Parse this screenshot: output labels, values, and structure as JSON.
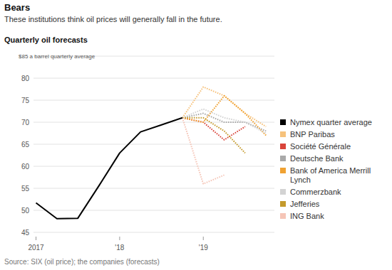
{
  "chart_data": {
    "type": "line",
    "title": "Bears",
    "subtitle": "These institutions think oil prices will generally fall in the future.",
    "y_label": "Quarterly oil forecasts",
    "source": "Source: SIX (oil price); the companies (forecasts)",
    "x": [
      2017.0,
      2017.25,
      2017.5,
      2017.75,
      2018.0,
      2018.25,
      2018.5,
      2018.75,
      2019.0,
      2019.25,
      2019.5,
      2019.75
    ],
    "xlim": [
      2016.97,
      2019.85
    ],
    "xticks": [
      {
        "value": 2017,
        "label": "2017"
      },
      {
        "value": 2018,
        "label": "'18"
      },
      {
        "value": 2019,
        "label": "'19"
      }
    ],
    "ylim": [
      45,
      85
    ],
    "yticks": [
      45,
      50,
      55,
      60,
      65,
      70,
      75,
      80,
      {
        "value": 85,
        "label": "$85 a barrel quarterly average"
      }
    ],
    "grid": true,
    "legend": "right",
    "series": [
      {
        "name": "Nymex quarter average",
        "color": "#000000",
        "line_style": "solid",
        "values": [
          51.7,
          48.1,
          48.2,
          55.5,
          63.0,
          67.8,
          69.4,
          71.0,
          null,
          null,
          null,
          null
        ]
      },
      {
        "name": "BNP Paribas",
        "color": "#f6c27c",
        "line_style": "dotted",
        "values": [
          null,
          null,
          null,
          null,
          null,
          null,
          null,
          71.0,
          78.0,
          76.0,
          72.0,
          69.0
        ]
      },
      {
        "name": "Société Générale",
        "color": "#d9443a",
        "line_style": "dotted",
        "values": [
          null,
          null,
          null,
          null,
          null,
          null,
          null,
          71.0,
          70.0,
          66.0,
          69.0,
          null
        ]
      },
      {
        "name": "Deutsche Bank",
        "color": "#a9a9a9",
        "line_style": "dotted",
        "values": [
          null,
          null,
          null,
          null,
          null,
          null,
          null,
          71.0,
          72.0,
          70.0,
          70.0,
          68.0
        ]
      },
      {
        "name": "Bank of America Merrill Lynch",
        "color": "#f0a232",
        "line_style": "dotted",
        "values": [
          null,
          null,
          null,
          null,
          null,
          null,
          null,
          71.0,
          70.0,
          76.0,
          72.0,
          67.0
        ]
      },
      {
        "name": "Commerzbank",
        "color": "#d3d3d3",
        "line_style": "dotted",
        "values": [
          null,
          null,
          null,
          null,
          null,
          null,
          null,
          71.0,
          73.0,
          71.0,
          70.0,
          67.5
        ]
      },
      {
        "name": "Jefferies",
        "color": "#c49a2c",
        "line_style": "dotted",
        "values": [
          null,
          null,
          null,
          null,
          null,
          null,
          null,
          71.0,
          71.0,
          68.0,
          63.0,
          null
        ]
      },
      {
        "name": "ING Bank",
        "color": "#f5c5b7",
        "line_style": "dotted",
        "values": [
          null,
          null,
          null,
          null,
          null,
          null,
          null,
          71.0,
          56.0,
          58.0,
          null,
          null
        ]
      }
    ]
  }
}
